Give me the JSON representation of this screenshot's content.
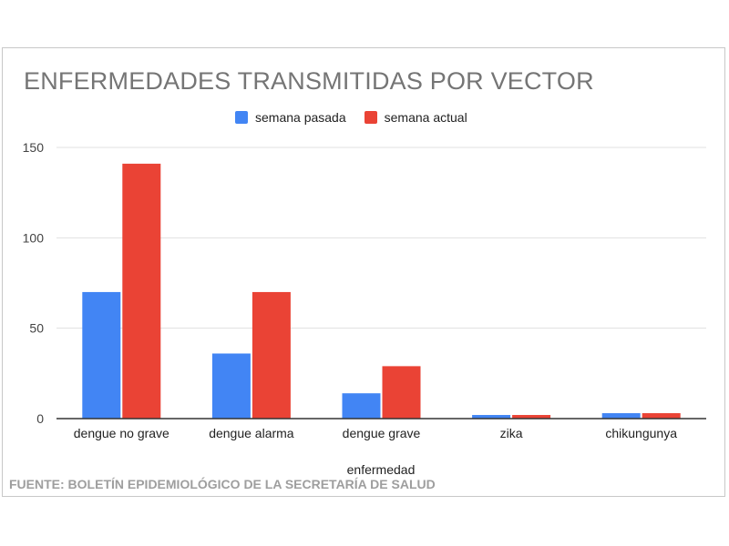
{
  "chart_data": {
    "type": "bar",
    "title": "ENFERMEDADES TRANSMITIDAS POR VECTOR",
    "xlabel": "enfermedad",
    "ylabel": "",
    "categories": [
      "dengue no grave",
      "dengue alarma",
      "dengue grave",
      "zika",
      "chikungunya"
    ],
    "series": [
      {
        "name": "semana pasada",
        "color": "#4285f4",
        "values": [
          70,
          36,
          14,
          2,
          3
        ]
      },
      {
        "name": "semana actual",
        "color": "#ea4335",
        "values": [
          141,
          70,
          29,
          2,
          3
        ]
      }
    ],
    "ylim": [
      0,
      150
    ],
    "yticks": [
      0,
      50,
      100,
      150
    ],
    "grid": true,
    "legend_position": "top-center"
  },
  "source_note": "FUENTE: BOLETÍN EPIDEMIOLÓGICO DE LA SECRETARÍA DE SALUD"
}
